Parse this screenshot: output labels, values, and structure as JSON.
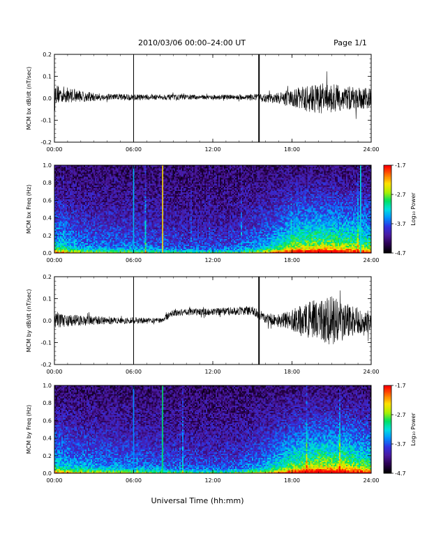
{
  "header": {
    "title": "2010/03/06  00:00–24:00 UT",
    "page": "Page 1/1"
  },
  "footer": {
    "xlabel": "Universal Time (hh:mm)"
  },
  "colors": {
    "trace": "#000000",
    "colormap": [
      "#000000",
      "#2a0050",
      "#4a1aa0",
      "#3030e0",
      "#0090ff",
      "#00e0e0",
      "#00e060",
      "#b0f000",
      "#ffe000",
      "#ff7000",
      "#ff0000"
    ]
  },
  "chart_data": [
    {
      "type": "line",
      "panel": "bx-dbdt",
      "ylabel": "MCM bx dB/dt (nT/sec)",
      "ylim": [
        -0.2,
        0.2
      ],
      "yticks": [
        "-0.2",
        "-0.1",
        "0.0",
        "0.1",
        "0.2"
      ],
      "xlim": [
        0,
        24
      ],
      "xticks": [
        "00:00",
        "06:00",
        "12:00",
        "18:00",
        "24:00"
      ],
      "spikes_hours": [
        6.0,
        15.5
      ],
      "series": [
        {
          "hours": [
            0,
            1,
            2,
            3,
            4,
            5,
            6,
            7,
            8,
            9,
            10,
            11,
            12,
            13,
            14,
            15,
            16,
            17,
            18,
            19,
            20,
            21,
            22,
            23,
            24
          ],
          "amplitude": [
            0.045,
            0.035,
            0.025,
            0.02,
            0.015,
            0.015,
            0.015,
            0.012,
            0.012,
            0.012,
            0.012,
            0.01,
            0.01,
            0.012,
            0.012,
            0.015,
            0.02,
            0.025,
            0.04,
            0.06,
            0.07,
            0.065,
            0.06,
            0.05,
            0.045
          ],
          "baseline": [
            0.02,
            0.015,
            0.01,
            0.005,
            0.005,
            0.005,
            0.005,
            0.005,
            0.005,
            0.005,
            0.005,
            0.005,
            0.005,
            0.005,
            0.005,
            0.005,
            0.0,
            0.0,
            0.0,
            0.0,
            0.0,
            0.0,
            0.0,
            0.0,
            0.0
          ]
        }
      ]
    },
    {
      "type": "heatmap",
      "panel": "bx-freq",
      "ylabel": "MCM bx Freq (Hz)",
      "ylim": [
        0.0,
        1.0
      ],
      "yticks": [
        "0.0",
        "0.2",
        "0.4",
        "0.6",
        "0.8",
        "1.0"
      ],
      "xlim": [
        0,
        24
      ],
      "xticks": [
        "00:00",
        "06:00",
        "12:00",
        "18:00",
        "24:00"
      ],
      "colorbar": {
        "label": "Log₁₀ Power",
        "range": [
          -4.7,
          -1.7
        ],
        "ticks": [
          "-1.7",
          "-2.7",
          "-3.7",
          "-4.7"
        ]
      },
      "activity_hours": [
        0,
        2,
        4,
        6,
        8,
        10,
        12,
        14,
        16,
        18,
        20,
        22,
        24
      ],
      "activity_level": [
        0.55,
        0.4,
        0.35,
        0.35,
        0.3,
        0.25,
        0.25,
        0.3,
        0.45,
        0.75,
        0.85,
        0.8,
        0.7
      ],
      "vertical_lines": [
        {
          "hour": 8.2,
          "level": 0.8
        },
        {
          "hour": 6.0,
          "level": 0.45
        },
        {
          "hour": 23.2,
          "level": 0.5
        }
      ]
    },
    {
      "type": "line",
      "panel": "by-dbdt",
      "ylabel": "MCM by dB/dt (nT/sec)",
      "ylim": [
        -0.2,
        0.2
      ],
      "yticks": [
        "-0.2",
        "-0.1",
        "0.0",
        "0.1",
        "0.2"
      ],
      "xlim": [
        0,
        24
      ],
      "xticks": [
        "00:00",
        "06:00",
        "12:00",
        "18:00",
        "24:00"
      ],
      "spikes_hours": [
        6.0,
        15.5
      ],
      "series": [
        {
          "hours": [
            0,
            1,
            2,
            3,
            4,
            5,
            6,
            7,
            8,
            9,
            10,
            11,
            12,
            13,
            14,
            15,
            16,
            17,
            18,
            19,
            20,
            21,
            22,
            23,
            24
          ],
          "amplitude": [
            0.035,
            0.03,
            0.025,
            0.02,
            0.015,
            0.015,
            0.015,
            0.012,
            0.012,
            0.015,
            0.015,
            0.015,
            0.015,
            0.018,
            0.02,
            0.02,
            0.025,
            0.03,
            0.05,
            0.08,
            0.1,
            0.11,
            0.09,
            0.06,
            0.05
          ],
          "baseline": [
            0.0,
            0.0,
            0.0,
            0.0,
            0.0,
            0.0,
            0.0,
            0.0,
            0.0,
            0.035,
            0.04,
            0.04,
            0.04,
            0.042,
            0.045,
            0.045,
            0.01,
            0.0,
            0.0,
            0.0,
            0.0,
            0.0,
            0.0,
            0.0,
            0.0
          ]
        }
      ]
    },
    {
      "type": "heatmap",
      "panel": "by-freq",
      "ylabel": "MCM by Freq (Hz)",
      "ylim": [
        0.0,
        1.0
      ],
      "yticks": [
        "0.0",
        "0.2",
        "0.4",
        "0.6",
        "0.8",
        "1.0"
      ],
      "xlim": [
        0,
        24
      ],
      "xticks": [
        "00:00",
        "06:00",
        "12:00",
        "18:00",
        "24:00"
      ],
      "colorbar": {
        "label": "Log₁₀ Power",
        "range": [
          -4.7,
          -1.7
        ],
        "ticks": [
          "-1.7",
          "-2.7",
          "-3.7",
          "-4.7"
        ]
      },
      "activity_hours": [
        0,
        2,
        4,
        6,
        8,
        10,
        12,
        14,
        16,
        18,
        20,
        22,
        24
      ],
      "activity_level": [
        0.55,
        0.45,
        0.4,
        0.38,
        0.32,
        0.28,
        0.28,
        0.3,
        0.45,
        0.72,
        0.88,
        0.85,
        0.7
      ],
      "vertical_lines": [
        {
          "hour": 8.2,
          "level": 0.6
        },
        {
          "hour": 6.0,
          "level": 0.4
        }
      ]
    }
  ]
}
